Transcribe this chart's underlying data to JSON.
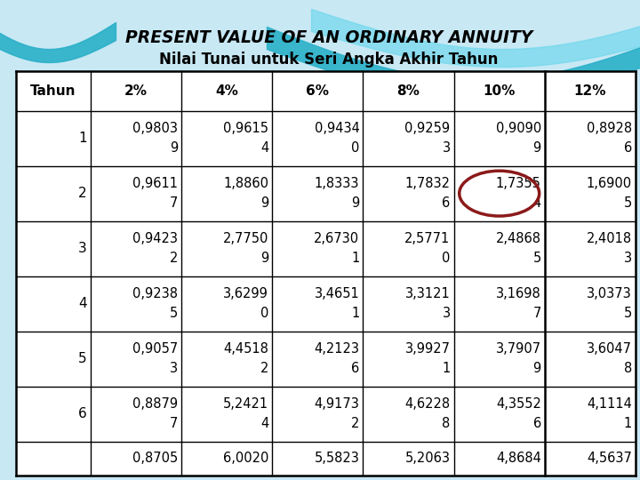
{
  "title1": "PRESENT VALUE OF AN ORDINARY ANNUITY",
  "title2": "Nilai Tunai untuk Seri Angka Akhir Tahun",
  "headers": [
    "Tahun",
    "2%",
    "4%",
    "6%",
    "8%",
    "10%",
    "12%"
  ],
  "data_rows": [
    [
      "1",
      "0,9803\n9",
      "0,9615\n4",
      "0,9434\n0",
      "0,9259\n3",
      "0,9090\n9",
      "0,8928\n6"
    ],
    [
      "2",
      "0,9611\n7",
      "1,8860\n9",
      "1,8333\n9",
      "1,7832\n6",
      "1,7355\n4",
      "1,6900\n5"
    ],
    [
      "3",
      "0,9423\n2",
      "2,7750\n9",
      "2,6730\n1",
      "2,5771\n0",
      "2,4868\n5",
      "2,4018\n3"
    ],
    [
      "4",
      "0,9238\n5",
      "3,6299\n0",
      "3,4651\n1",
      "3,3121\n3",
      "3,1698\n7",
      "3,0373\n5"
    ],
    [
      "5",
      "0,9057\n3",
      "4,4518\n2",
      "4,2123\n6",
      "3,9927\n1",
      "3,7907\n9",
      "3,6047\n8"
    ],
    [
      "6",
      "0,8879\n7",
      "5,2421\n4",
      "4,9173\n2",
      "4,6228\n8",
      "4,3552\n6",
      "4,1114\n1"
    ],
    [
      "",
      "0,8705",
      "6,0020",
      "5,5823",
      "5,2063",
      "4,8684",
      "4,5637"
    ]
  ],
  "circle_row_idx": 1,
  "circle_col_idx": 5,
  "bg_color": "#c8e8f4",
  "circle_color": "#8b1a1a",
  "teal_dark": "#2ab0c8",
  "teal_light": "#70d8ec"
}
